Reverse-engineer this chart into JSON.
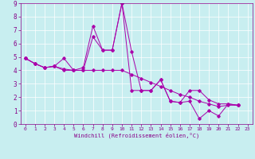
{
  "xlabel": "Windchill (Refroidissement éolien,°C)",
  "background_color": "#c8eef0",
  "line_color": "#aa00aa",
  "xlim": [
    -0.5,
    23.5
  ],
  "ylim": [
    0,
    9
  ],
  "xticks": [
    0,
    1,
    2,
    3,
    4,
    5,
    6,
    7,
    8,
    9,
    10,
    11,
    12,
    13,
    14,
    15,
    16,
    17,
    18,
    19,
    20,
    21,
    22,
    23
  ],
  "yticks": [
    0,
    1,
    2,
    3,
    4,
    5,
    6,
    7,
    8,
    9
  ],
  "series": [
    [
      4.9,
      4.5,
      4.2,
      4.3,
      4.1,
      4.0,
      4.0,
      6.5,
      5.5,
      5.5,
      9.0,
      5.4,
      2.5,
      2.5,
      3.3,
      1.7,
      1.6,
      1.7,
      0.4,
      1.0,
      0.6,
      1.5,
      1.4
    ],
    [
      4.9,
      4.5,
      4.2,
      4.3,
      4.9,
      4.0,
      4.2,
      7.3,
      5.5,
      5.5,
      9.0,
      2.5,
      2.5,
      2.5,
      3.3,
      1.7,
      1.6,
      2.5,
      2.5,
      1.8,
      1.5,
      1.5,
      1.4
    ],
    [
      4.9,
      4.5,
      4.2,
      4.3,
      4.0,
      4.0,
      4.0,
      4.0,
      4.0,
      4.0,
      4.0,
      3.7,
      3.4,
      3.1,
      2.8,
      2.5,
      2.2,
      2.0,
      1.7,
      1.5,
      1.3,
      1.4,
      1.4
    ]
  ]
}
